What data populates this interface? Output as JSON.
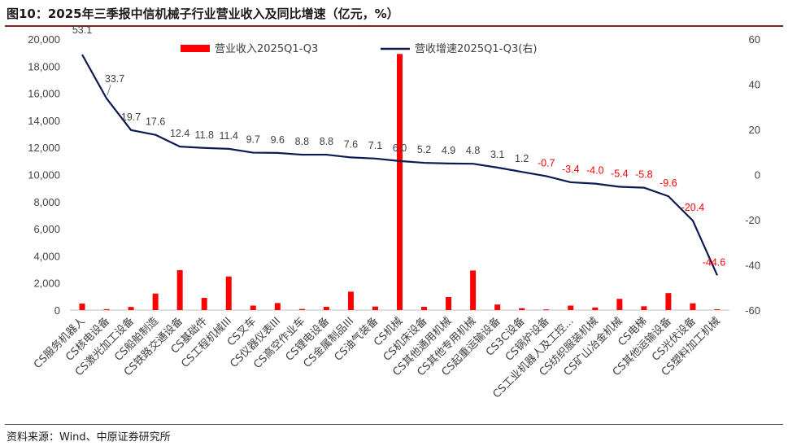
{
  "header": {
    "title": "图10：2025年三季报中信机械子行业营业收入及同比增速（亿元，%）"
  },
  "footer": {
    "source": "资料来源：Wind、中原证券研究所"
  },
  "colors": {
    "bar": "#ff0000",
    "line": "#0d1a52",
    "label_positive": "#404040",
    "label_negative": "#ff0000",
    "title_rule": "#8b1a1a"
  },
  "chart_data": {
    "type": "bar",
    "title": "",
    "categories": [
      "CS服务机器人",
      "CS核电设备",
      "CS激光加工设备",
      "CS船舶制造",
      "CS铁路交通设备",
      "CS基础件",
      "CS工程机械III",
      "CS叉车",
      "CS仪器仪表III",
      "CS高空作业车",
      "CS锂电设备",
      "CS金属制品III",
      "CS油气装备",
      "CS机械",
      "CS机床设备",
      "CS其他通用机械",
      "CS其他专用机械",
      "CS起重运输设备",
      "CS3C设备",
      "CS锅炉设备",
      "CS工业机器人及工控...",
      "CS纺织服装机械",
      "CS矿山冶金机械",
      "CS电梯",
      "CS其他运输设备",
      "CS光伏设备",
      "CS塑料加工机械"
    ],
    "series": [
      {
        "name": "营业收入2025Q1-Q3",
        "type": "bar",
        "axis": "left",
        "values": [
          480,
          70,
          230,
          1220,
          2950,
          900,
          2480,
          330,
          520,
          80,
          240,
          1360,
          260,
          18900,
          240,
          960,
          2920,
          410,
          140,
          50,
          330,
          190,
          830,
          280,
          1250,
          500,
          60
        ]
      },
      {
        "name": "营收增速2025Q1-Q3(右)",
        "type": "line",
        "axis": "right",
        "values": [
          53.1,
          33.7,
          19.7,
          17.6,
          12.4,
          11.8,
          11.4,
          9.7,
          9.6,
          8.8,
          8.8,
          7.6,
          7.1,
          6.0,
          5.2,
          4.9,
          4.8,
          3.1,
          1.2,
          -0.7,
          -3.4,
          -4.0,
          -5.4,
          -5.8,
          -9.6,
          -20.4,
          -44.6
        ]
      }
    ],
    "y_left": {
      "lim": [
        0,
        20000
      ],
      "ticks": [
        "0",
        "2,000",
        "4,000",
        "6,000",
        "8,000",
        "10,000",
        "12,000",
        "14,000",
        "16,000",
        "18,000",
        "20,000"
      ]
    },
    "y_right": {
      "lim": [
        -60,
        60
      ],
      "ticks": [
        "-60",
        "-40",
        "-20",
        "0",
        "20",
        "40",
        "60"
      ]
    },
    "grid": false,
    "legend": {
      "placement": "top"
    }
  }
}
